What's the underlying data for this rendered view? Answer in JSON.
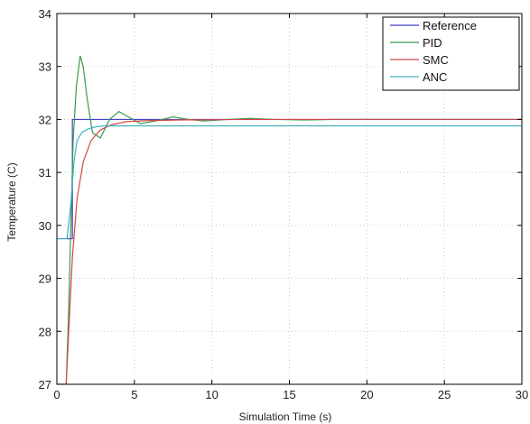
{
  "chart_data": {
    "type": "line",
    "title": "",
    "xlabel": "Simulation Time (s)",
    "ylabel": "Temperature (C)",
    "xlim": [
      0,
      30
    ],
    "ylim": [
      27,
      34
    ],
    "xticks": [
      0,
      5,
      10,
      15,
      20,
      25,
      30
    ],
    "yticks": [
      27,
      28,
      29,
      30,
      31,
      32,
      33,
      34
    ],
    "grid": true,
    "legend_position": "top-right",
    "series": [
      {
        "name": "Reference",
        "color": "#4040c8",
        "x": [
          0,
          1.0,
          1.0,
          30
        ],
        "y": [
          29.75,
          29.75,
          32.0,
          32.0
        ]
      },
      {
        "name": "PID",
        "color": "#3a9a50",
        "x": [
          0,
          0.6,
          0.75,
          0.9,
          1.05,
          1.25,
          1.5,
          1.7,
          1.95,
          2.3,
          2.8,
          3.4,
          4.0,
          4.6,
          5.4,
          6.5,
          7.5,
          8.5,
          9.5,
          11,
          12.5,
          14,
          16,
          18,
          21,
          25,
          30
        ],
        "y": [
          27.0,
          27.0,
          28.3,
          30.0,
          31.6,
          32.6,
          33.2,
          33.0,
          32.4,
          31.75,
          31.65,
          32.0,
          32.15,
          32.05,
          31.92,
          31.98,
          32.05,
          32.0,
          31.97,
          32.0,
          32.02,
          32.0,
          31.99,
          32.0,
          32.0,
          32.0,
          32.0
        ]
      },
      {
        "name": "SMC",
        "color": "#d04848",
        "x": [
          0,
          0.6,
          0.8,
          1.0,
          1.3,
          1.7,
          2.2,
          2.8,
          3.5,
          4.5,
          6,
          8,
          12,
          30
        ],
        "y": [
          27.0,
          27.0,
          28.2,
          29.4,
          30.5,
          31.2,
          31.6,
          31.8,
          31.9,
          31.96,
          31.98,
          31.99,
          32.0,
          32.0
        ]
      },
      {
        "name": "ANC",
        "color": "#40b0c0",
        "x": [
          0,
          0.65,
          0.9,
          1.1,
          1.3,
          1.6,
          2.0,
          2.5,
          3.0,
          30
        ],
        "y": [
          29.75,
          29.75,
          30.4,
          31.2,
          31.6,
          31.75,
          31.82,
          31.86,
          31.88,
          31.88
        ]
      }
    ]
  }
}
